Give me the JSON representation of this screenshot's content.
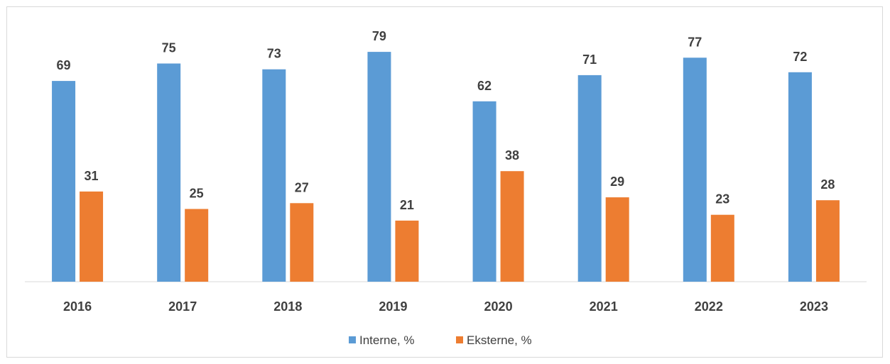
{
  "chart_data": {
    "type": "bar",
    "categories": [
      "2016",
      "2017",
      "2018",
      "2019",
      "2020",
      "2021",
      "2022",
      "2023"
    ],
    "series": [
      {
        "name": "Interne, %",
        "values": [
          69,
          75,
          73,
          79,
          62,
          71,
          77,
          72
        ],
        "color": "#5b9bd5"
      },
      {
        "name": "Eksterne, %",
        "values": [
          31,
          25,
          27,
          21,
          38,
          29,
          23,
          28
        ],
        "color": "#ed7d31"
      }
    ],
    "ylim": [
      0,
      90
    ],
    "grid": false,
    "data_labels": true,
    "legend_position": "bottom"
  }
}
